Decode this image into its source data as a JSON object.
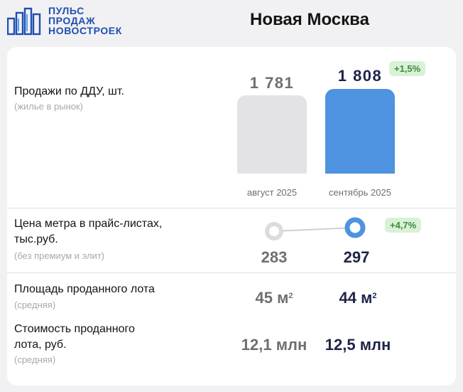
{
  "header": {
    "logo_lines": [
      "ПУЛЬС",
      "ПРОДАЖ",
      "НОВОСТРОЕК"
    ],
    "logo_icon": "building-bars-icon",
    "title": "Новая Москва"
  },
  "sales": {
    "label": "Продажи по ДДУ, шт.",
    "note": "(жилье в рынок)",
    "august": {
      "value": "1 781",
      "period": "август 2025",
      "amount": 1781
    },
    "september": {
      "value": "1 808",
      "period": "сентябрь 2025",
      "amount": 1808
    },
    "change": "+1,5%"
  },
  "price": {
    "label_line1": "Цена метра в прайс-листах,",
    "label_line2": "тыс.руб.",
    "note": "(без премиум и элит)",
    "august_value": "283",
    "september_value": "297",
    "change": "+4,7%"
  },
  "area": {
    "label": "Площадь проданного лота",
    "note": "(средняя)",
    "august_value": "45 м",
    "september_value": "44 м",
    "unit_power": "2"
  },
  "cost": {
    "label_line1": "Стоимость проданного",
    "label_line2": "лота, руб.",
    "note": "(средняя)",
    "august_value": "12,1 млн",
    "september_value": "12,5 млн"
  },
  "colors": {
    "accent_blue": "#4e93e0",
    "bar_grey": "#e3e3e5",
    "positive_badge_bg": "#d9f1d7",
    "positive_badge_text": "#3c8a3a",
    "logo_blue": "#1f4fb0"
  }
}
